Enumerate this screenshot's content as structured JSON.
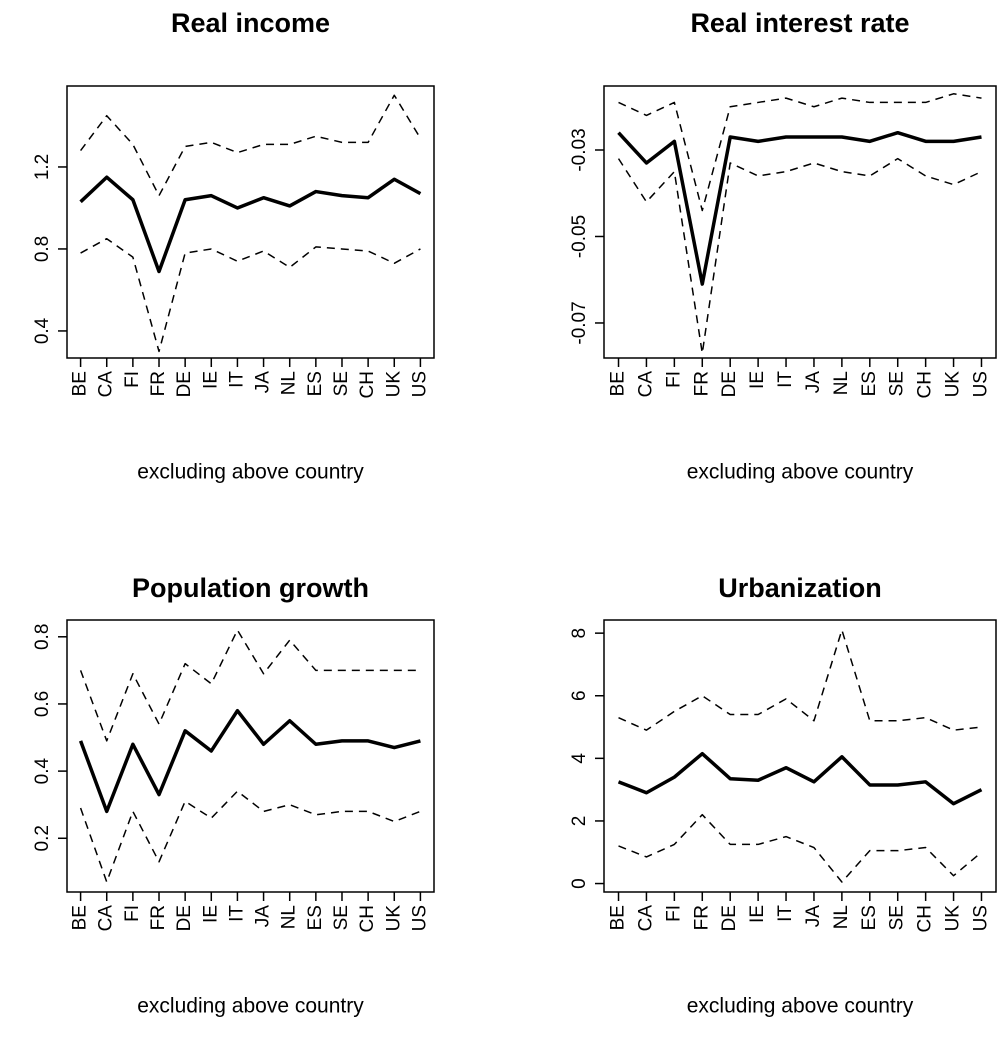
{
  "chart_data": [
    {
      "type": "line",
      "title": "Real income",
      "xlabel": "excluding above country",
      "categories": [
        "BE",
        "CA",
        "FI",
        "FR",
        "DE",
        "IE",
        "IT",
        "JA",
        "NL",
        "ES",
        "SE",
        "CH",
        "UK",
        "US"
      ],
      "ylim": [
        0.268,
        1.595
      ],
      "yticks": [
        0.4,
        0.8,
        1.2
      ],
      "series": [
        {
          "color": "#000000",
          "line_style": "solid",
          "values": [
            1.03,
            1.15,
            1.04,
            0.69,
            1.04,
            1.06,
            1.0,
            1.05,
            1.01,
            1.08,
            1.06,
            1.05,
            1.14,
            1.07
          ]
        },
        {
          "color": "#000000",
          "line_style": "dashed",
          "values": [
            1.28,
            1.45,
            1.31,
            1.06,
            1.3,
            1.32,
            1.27,
            1.31,
            1.31,
            1.35,
            1.32,
            1.32,
            1.55,
            1.34
          ]
        },
        {
          "color": "#000000",
          "line_style": "dashed",
          "values": [
            0.78,
            0.85,
            0.76,
            0.3,
            0.78,
            0.8,
            0.74,
            0.79,
            0.71,
            0.81,
            0.8,
            0.79,
            0.73,
            0.8
          ]
        }
      ]
    },
    {
      "type": "line",
      "title": "Real interest rate",
      "xlabel": "excluding above country",
      "categories": [
        "BE",
        "CA",
        "FI",
        "FR",
        "DE",
        "IE",
        "IT",
        "JA",
        "NL",
        "ES",
        "SE",
        "CH",
        "UK",
        "US"
      ],
      "ylim": [
        -0.0781,
        -0.0152
      ],
      "yticks": [
        -0.07,
        -0.05,
        -0.03
      ],
      "series": [
        {
          "color": "#000000",
          "line_style": "solid",
          "values": [
            -0.026,
            -0.033,
            -0.028,
            -0.061,
            -0.027,
            -0.028,
            -0.027,
            -0.027,
            -0.027,
            -0.028,
            -0.026,
            -0.028,
            -0.028,
            -0.027
          ]
        },
        {
          "color": "#000000",
          "line_style": "dashed",
          "values": [
            -0.019,
            -0.022,
            -0.019,
            -0.044,
            -0.02,
            -0.019,
            -0.018,
            -0.02,
            -0.018,
            -0.019,
            -0.019,
            -0.019,
            -0.017,
            -0.018
          ]
        },
        {
          "color": "#000000",
          "line_style": "dashed",
          "values": [
            -0.032,
            -0.042,
            -0.035,
            -0.077,
            -0.033,
            -0.036,
            -0.035,
            -0.033,
            -0.035,
            -0.036,
            -0.032,
            -0.036,
            -0.038,
            -0.035
          ]
        }
      ]
    },
    {
      "type": "line",
      "title": "Population growth",
      "xlabel": "excluding above country",
      "categories": [
        "BE",
        "CA",
        "FI",
        "FR",
        "DE",
        "IE",
        "IT",
        "JA",
        "NL",
        "ES",
        "SE",
        "CH",
        "UK",
        "US"
      ],
      "ylim": [
        0.04,
        0.85
      ],
      "yticks": [
        0.2,
        0.4,
        0.6,
        0.8
      ],
      "series": [
        {
          "color": "#000000",
          "line_style": "solid",
          "values": [
            0.49,
            0.28,
            0.48,
            0.33,
            0.52,
            0.46,
            0.58,
            0.48,
            0.55,
            0.48,
            0.49,
            0.49,
            0.47,
            0.49
          ]
        },
        {
          "color": "#000000",
          "line_style": "dashed",
          "values": [
            0.7,
            0.49,
            0.69,
            0.54,
            0.72,
            0.66,
            0.82,
            0.69,
            0.79,
            0.7,
            0.7,
            0.7,
            0.7,
            0.7
          ]
        },
        {
          "color": "#000000",
          "line_style": "dashed",
          "values": [
            0.29,
            0.07,
            0.28,
            0.13,
            0.31,
            0.26,
            0.34,
            0.28,
            0.3,
            0.27,
            0.28,
            0.28,
            0.25,
            0.28
          ]
        }
      ]
    },
    {
      "type": "line",
      "title": "Urbanization",
      "xlabel": "excluding above country",
      "categories": [
        "BE",
        "CA",
        "FI",
        "FR",
        "DE",
        "IE",
        "IT",
        "JA",
        "NL",
        "ES",
        "SE",
        "CH",
        "UK",
        "US"
      ],
      "ylim": [
        -0.27,
        8.42
      ],
      "yticks": [
        0,
        2,
        4,
        6,
        8
      ],
      "series": [
        {
          "color": "#000000",
          "line_style": "solid",
          "values": [
            3.25,
            2.9,
            3.4,
            4.15,
            3.35,
            3.3,
            3.7,
            3.25,
            4.05,
            3.15,
            3.15,
            3.25,
            2.55,
            3.0
          ]
        },
        {
          "color": "#000000",
          "line_style": "dashed",
          "values": [
            5.3,
            4.9,
            5.5,
            6.0,
            5.4,
            5.4,
            5.9,
            5.2,
            8.1,
            5.2,
            5.2,
            5.3,
            4.9,
            5.0
          ]
        },
        {
          "color": "#000000",
          "line_style": "dashed",
          "values": [
            1.2,
            0.85,
            1.25,
            2.2,
            1.25,
            1.25,
            1.5,
            1.15,
            0.05,
            1.05,
            1.05,
            1.15,
            0.25,
            1.0
          ]
        }
      ]
    }
  ]
}
